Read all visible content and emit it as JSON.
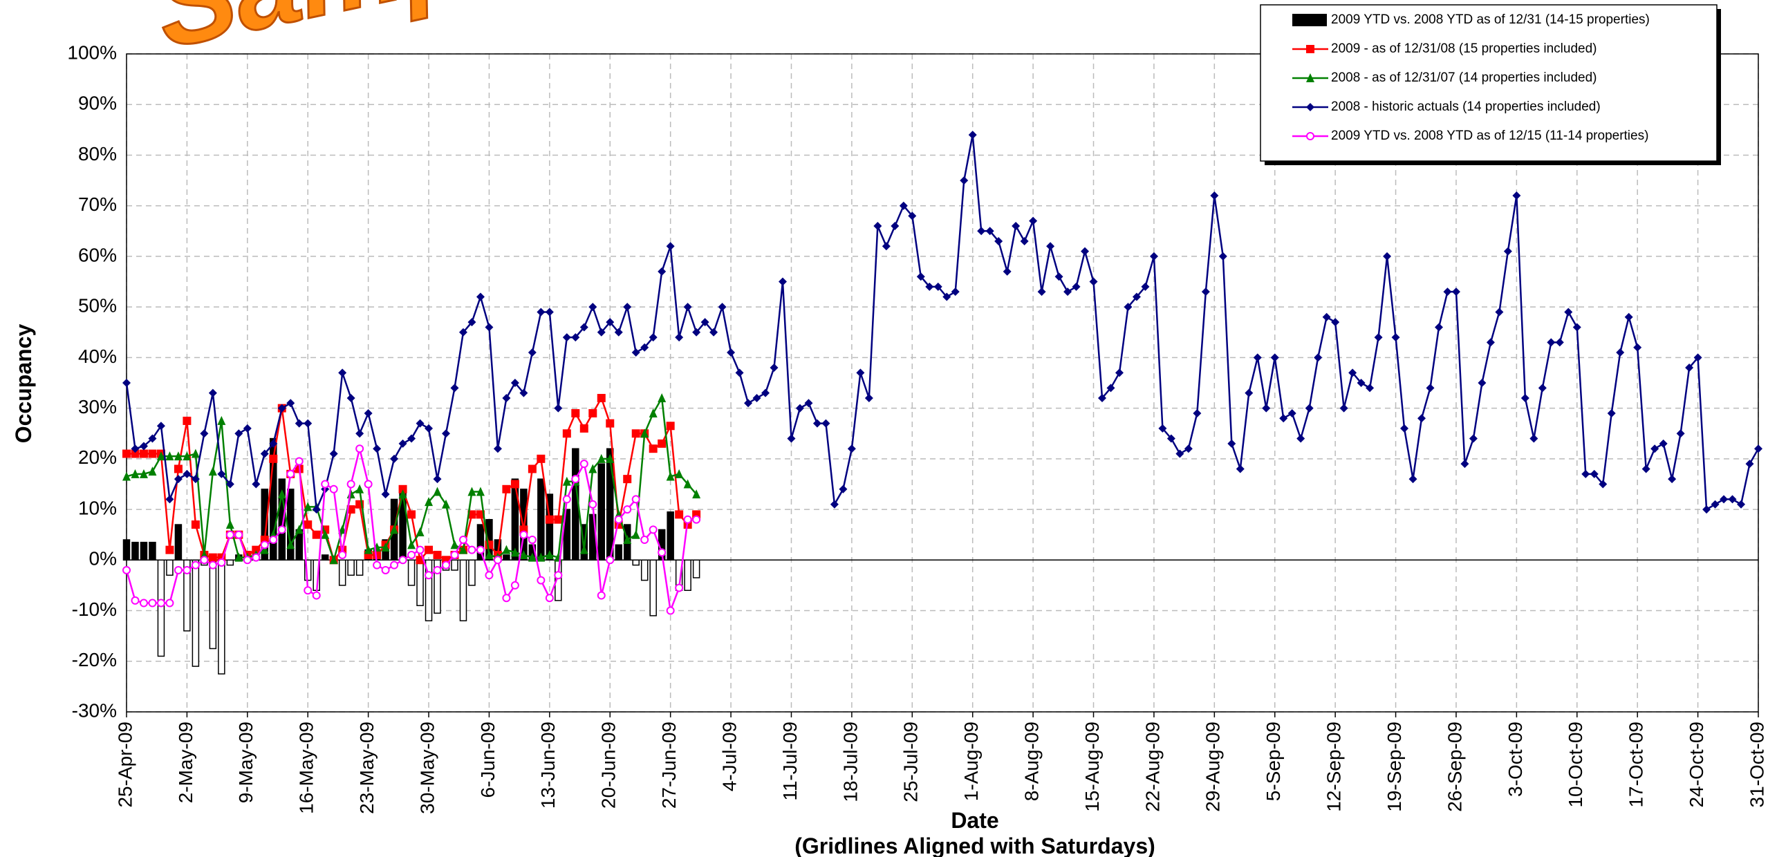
{
  "chart_data": {
    "type": "combo",
    "watermark": "Sample",
    "x_label": "Date",
    "x_sublabel": "(Gridlines Aligned with Saturdays)",
    "y_label": "Occupancy",
    "ylim": [
      -30,
      100
    ],
    "yticks": [
      {
        "value": -30,
        "label": "-30%"
      },
      {
        "value": -20,
        "label": "-20%"
      },
      {
        "value": -10,
        "label": "-10%"
      },
      {
        "value": 0,
        "label": "0%"
      },
      {
        "value": 10,
        "label": "10%"
      },
      {
        "value": 20,
        "label": "20%"
      },
      {
        "value": 30,
        "label": "30%"
      },
      {
        "value": 40,
        "label": "40%"
      },
      {
        "value": 50,
        "label": "50%"
      },
      {
        "value": 60,
        "label": "60%"
      },
      {
        "value": 70,
        "label": "70%"
      },
      {
        "value": 80,
        "label": "80%"
      },
      {
        "value": 90,
        "label": "90%"
      },
      {
        "value": 100,
        "label": "100%"
      }
    ],
    "grid": true,
    "legend": "top-right",
    "categories": [
      "25-Apr-09",
      null,
      null,
      null,
      null,
      null,
      null,
      "2-May-09",
      null,
      null,
      null,
      null,
      null,
      null,
      "9-May-09",
      null,
      null,
      null,
      null,
      null,
      null,
      "16-May-09",
      null,
      null,
      null,
      null,
      null,
      null,
      "23-May-09",
      null,
      null,
      null,
      null,
      null,
      null,
      "30-May-09",
      null,
      null,
      null,
      null,
      null,
      null,
      "6-Jun-09",
      null,
      null,
      null,
      null,
      null,
      null,
      "13-Jun-09",
      null,
      null,
      null,
      null,
      null,
      null,
      "20-Jun-09",
      null,
      null,
      null,
      null,
      null,
      null,
      "27-Jun-09",
      null,
      null,
      null,
      null,
      null,
      null,
      "4-Jul-09",
      null,
      null,
      null,
      null,
      null,
      null,
      "11-Jul-09",
      null,
      null,
      null,
      null,
      null,
      null,
      "18-Jul-09",
      null,
      null,
      null,
      null,
      null,
      null,
      "25-Jul-09",
      null,
      null,
      null,
      null,
      null,
      null,
      "1-Aug-09",
      null,
      null,
      null,
      null,
      null,
      null,
      "8-Aug-09",
      null,
      null,
      null,
      null,
      null,
      null,
      "15-Aug-09",
      null,
      null,
      null,
      null,
      null,
      null,
      "22-Aug-09",
      null,
      null,
      null,
      null,
      null,
      null,
      "29-Aug-09",
      null,
      null,
      null,
      null,
      null,
      null,
      "5-Sep-09",
      null,
      null,
      null,
      null,
      null,
      null,
      "12-Sep-09",
      null,
      null,
      null,
      null,
      null,
      null,
      "19-Sep-09",
      null,
      null,
      null,
      null,
      null,
      null,
      "26-Sep-09",
      null,
      null,
      null,
      null,
      null,
      null,
      "3-Oct-09",
      null,
      null,
      null,
      null,
      null,
      null,
      "10-Oct-09",
      null,
      null,
      null,
      null,
      null,
      null,
      "17-Oct-09",
      null,
      null,
      null,
      null,
      null,
      null,
      "24-Oct-09",
      null,
      null,
      null,
      null,
      null,
      null,
      "31-Oct-09"
    ],
    "series": [
      {
        "name": "2009 YTD vs. 2008 YTD as of 12/31 (14-15 properties)",
        "type": "bar",
        "color": "#000000",
        "negative_color": "#ffffff",
        "values": [
          4,
          3.5,
          3.5,
          3.5,
          -19,
          -3,
          7,
          -14,
          -21,
          -1,
          -17.5,
          -22.5,
          -1,
          1,
          0.5,
          2,
          14,
          24,
          16,
          14,
          6,
          -4,
          -6,
          1,
          0,
          -5,
          -3,
          -3,
          2,
          2,
          4,
          12,
          14,
          -5,
          -9,
          -12,
          -10.5,
          -2,
          -2,
          -12,
          -5,
          7,
          8,
          4,
          1,
          16,
          14,
          3,
          16,
          13,
          -8,
          10,
          22,
          7,
          9,
          19,
          22,
          3,
          7,
          -1,
          -4,
          -11,
          6,
          9.5,
          -6,
          -6,
          -3.5,
          null,
          null,
          null,
          null,
          null,
          null,
          null,
          null,
          null,
          null,
          null,
          null,
          null,
          null,
          null,
          null,
          null,
          null,
          null,
          null,
          null,
          null,
          null,
          null,
          null,
          null,
          null,
          null,
          null,
          null,
          null,
          null,
          null,
          null,
          null,
          null,
          null,
          null,
          null,
          null,
          null,
          null,
          null,
          null,
          null,
          null,
          null,
          null,
          null,
          null,
          null,
          null,
          null,
          null,
          null,
          null,
          null,
          null,
          null,
          null,
          null,
          null,
          null,
          null,
          null,
          null,
          null,
          null,
          null,
          null,
          null,
          null,
          null,
          null,
          null,
          null,
          null,
          null,
          null,
          null,
          null,
          null,
          null,
          null,
          null,
          null,
          null,
          null,
          null,
          null,
          null,
          null,
          null,
          null,
          null,
          null,
          null,
          null,
          null,
          null,
          null,
          null,
          null,
          null,
          null,
          null,
          null,
          null,
          null,
          null,
          null,
          null,
          null,
          null,
          null,
          null,
          null,
          null,
          null,
          null,
          null,
          null,
          null
        ]
      },
      {
        "name": "2009 - as of 12/31/08 (15 properties included)",
        "type": "line",
        "marker": "square",
        "color": "#ff0000",
        "values": [
          21,
          21,
          21,
          21,
          21,
          2,
          18,
          27.5,
          7,
          1,
          0.5,
          0.5,
          5,
          5,
          1,
          2,
          4,
          20,
          30,
          17,
          18,
          7,
          5,
          6,
          0,
          2,
          10,
          11,
          1,
          1,
          3,
          6,
          14,
          9,
          0,
          2,
          1,
          0,
          1,
          2,
          9,
          9,
          3,
          1,
          14,
          15,
          6,
          18,
          20,
          8,
          8,
          25,
          29,
          26,
          29,
          32,
          27,
          7,
          16,
          25,
          25,
          22,
          23,
          26.5,
          9,
          7,
          9,
          null,
          null,
          null,
          null,
          null,
          null,
          null,
          null,
          null,
          null,
          null,
          null,
          null,
          null,
          null,
          null,
          null,
          null,
          null,
          null,
          null,
          null,
          null,
          null,
          null,
          null,
          null,
          null,
          null,
          null,
          null,
          null,
          null,
          null,
          null,
          null,
          null,
          null,
          null,
          null,
          null,
          null,
          null,
          null,
          null,
          null,
          null,
          null,
          null,
          null,
          null,
          null,
          null,
          null,
          null,
          null,
          null,
          null,
          null,
          null,
          null,
          null,
          null,
          null,
          null,
          null,
          null,
          null,
          null,
          null,
          null,
          null,
          null,
          null,
          null,
          null,
          null,
          null,
          null,
          null,
          null,
          null,
          null,
          null,
          null,
          null,
          null,
          null,
          null,
          null,
          null,
          null,
          null,
          null,
          null,
          null,
          null,
          null,
          null,
          null,
          null,
          null,
          null,
          null,
          null,
          null,
          null,
          null,
          null,
          null,
          null,
          null,
          null,
          null,
          null,
          null,
          null,
          null,
          null,
          null,
          null,
          null,
          null
        ]
      },
      {
        "name": "2008 - as of 12/31/07 (14 properties included)",
        "type": "line",
        "marker": "triangle",
        "color": "#008000",
        "values": [
          16.5,
          17,
          17,
          17.5,
          20.5,
          20.5,
          20.5,
          20.5,
          21,
          1,
          17.5,
          27.5,
          7,
          0.5,
          0.5,
          1,
          2,
          5,
          13,
          3,
          6,
          10.5,
          10.5,
          5,
          0,
          6,
          13,
          14,
          2,
          2.5,
          2.5,
          6,
          13,
          3,
          5.5,
          11.5,
          13.5,
          11,
          3,
          2,
          13.5,
          13.5,
          1,
          0.5,
          2,
          1.5,
          1,
          0.5,
          0.5,
          1,
          0.5,
          15.5,
          15.5,
          2,
          18,
          20,
          20,
          9,
          4,
          5,
          25,
          29,
          32,
          16.5,
          17,
          15,
          13,
          null,
          null,
          null,
          null,
          null,
          null,
          null,
          null,
          null,
          null,
          null,
          null,
          null,
          null,
          null,
          null,
          null,
          null,
          null,
          null,
          null,
          null,
          null,
          null,
          null,
          null,
          null,
          null,
          null,
          null,
          null,
          null,
          null,
          null,
          null,
          null,
          null,
          null,
          null,
          null,
          null,
          null,
          null,
          null,
          null,
          null,
          null,
          null,
          null,
          null,
          null,
          null,
          null,
          null,
          null,
          null,
          null,
          null,
          null,
          null,
          null,
          null,
          null,
          null,
          null,
          null,
          null,
          null,
          null,
          null,
          null,
          null,
          null,
          null,
          null,
          null,
          null,
          null,
          null,
          null,
          null,
          null,
          null,
          null,
          null,
          null,
          null,
          null,
          null,
          null,
          null,
          null,
          null,
          null,
          null,
          null,
          null,
          null,
          null,
          null,
          null,
          null,
          null,
          null,
          null,
          null,
          null,
          null,
          null,
          null,
          null,
          null,
          null,
          null,
          null,
          null,
          null,
          null,
          null,
          null,
          null,
          null,
          null
        ]
      },
      {
        "name": "2008 - historic actuals (14 properties included)",
        "type": "line",
        "marker": "diamond",
        "color": "#000080",
        "values": [
          35,
          22,
          22.5,
          24,
          26.5,
          12,
          16,
          17,
          16,
          25,
          33,
          17,
          15,
          25,
          26,
          15,
          21,
          23,
          30,
          31,
          27,
          27,
          10,
          14,
          21,
          37,
          32,
          25,
          29,
          22,
          13,
          20,
          23,
          24,
          27,
          26,
          16,
          25,
          34,
          45,
          47,
          52,
          46,
          22,
          32,
          35,
          33,
          41,
          49,
          49,
          30,
          44,
          44,
          46,
          50,
          45,
          47,
          45,
          50,
          41,
          42,
          44,
          57,
          62,
          44,
          50,
          45,
          47,
          45,
          50,
          41,
          37,
          31,
          32,
          33,
          38,
          55,
          24,
          30,
          31,
          27,
          27,
          11,
          14,
          22,
          37,
          32,
          66,
          62,
          66,
          70,
          68,
          56,
          54,
          54,
          52,
          53,
          75,
          84,
          65,
          65,
          63,
          57,
          66,
          63,
          67,
          53,
          62,
          56,
          53,
          54,
          61,
          55,
          32,
          34,
          37,
          50,
          52,
          54,
          60,
          26,
          24,
          21,
          22,
          29,
          53,
          72,
          60,
          23,
          18,
          33,
          40,
          30,
          40,
          28,
          29,
          24,
          30,
          40,
          48,
          47,
          30,
          37,
          35,
          34,
          44,
          60,
          44,
          26,
          16,
          28,
          34,
          46,
          53,
          53,
          19,
          24,
          35,
          43,
          49,
          61,
          72,
          32,
          24,
          34,
          43,
          43,
          49,
          46,
          17,
          17,
          15,
          29,
          41,
          48,
          42,
          18,
          22,
          23,
          16,
          25,
          38,
          40,
          10,
          11,
          12,
          12,
          11,
          19,
          22
        ]
      },
      {
        "name": "2009 YTD vs. 2008 YTD as of 12/15 (11-14 properties)",
        "type": "line",
        "marker": "circle",
        "color": "#ff00ff",
        "values": [
          -2,
          -8,
          -8.5,
          -8.5,
          -8.5,
          -8.5,
          -2,
          -2,
          -1,
          0,
          -1,
          -0.5,
          5,
          5,
          0,
          0.5,
          3,
          4,
          6,
          17,
          19.5,
          -6,
          -7,
          15,
          14,
          1,
          15,
          22,
          15,
          -1,
          -2,
          -1,
          0,
          1,
          2,
          -3,
          -2,
          -1,
          1,
          4,
          2,
          2,
          -3,
          0,
          -7.5,
          -5,
          5,
          4,
          -4,
          -7.5,
          -3,
          12,
          16,
          19,
          11,
          -7,
          0,
          8,
          10,
          12,
          4,
          6,
          1.5,
          -10,
          -5.5,
          8,
          8,
          null,
          null,
          null,
          null,
          null,
          null,
          null,
          null,
          null,
          null,
          null,
          null,
          null,
          null,
          null,
          null,
          null,
          null,
          null,
          null,
          null,
          null,
          null,
          null,
          null,
          null,
          null,
          null,
          null,
          null,
          null,
          null,
          null,
          null,
          null,
          null,
          null,
          null,
          null,
          null,
          null,
          null,
          null,
          null,
          null,
          null,
          null,
          null,
          null,
          null,
          null,
          null,
          null,
          null,
          null,
          null,
          null,
          null,
          null,
          null,
          null,
          null,
          null,
          null,
          null,
          null,
          null,
          null,
          null,
          null,
          null,
          null,
          null,
          null,
          null,
          null,
          null,
          null,
          null,
          null,
          null,
          null,
          null,
          null,
          null,
          null,
          null,
          null,
          null,
          null,
          null,
          null,
          null,
          null,
          null,
          null,
          null,
          null,
          null,
          null,
          null,
          null,
          null,
          null,
          null,
          null,
          null,
          null,
          null,
          null,
          null,
          null,
          null,
          null,
          null,
          null,
          null,
          null,
          null,
          null,
          null,
          null,
          null
        ]
      }
    ]
  }
}
